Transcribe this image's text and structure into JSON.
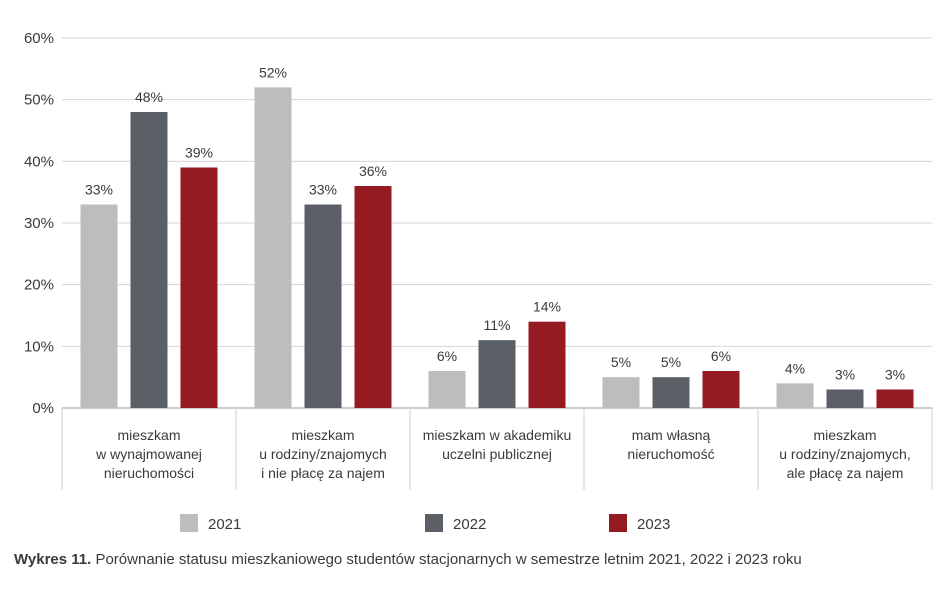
{
  "chart_data": {
    "type": "bar",
    "categories": [
      [
        "mieszkam",
        "w wynajmowanej",
        "nieruchomości"
      ],
      [
        "mieszkam",
        "u rodziny/znajomych",
        "i nie płacę za najem"
      ],
      [
        "mieszkam w akademiku",
        "uczelni publicznej"
      ],
      [
        "mam własną",
        "nieruchomość"
      ],
      [
        "mieszkam",
        "u rodziny/znajomych,",
        "ale płacę za najem"
      ]
    ],
    "series": [
      {
        "name": "2021",
        "color": "#bcbdbf",
        "values": [
          33,
          52,
          6,
          5,
          4
        ]
      },
      {
        "name": "2022",
        "color": "#5b5f66",
        "values": [
          48,
          33,
          11,
          5,
          3
        ]
      },
      {
        "name": "2023",
        "color": "#941b22",
        "values": [
          39,
          36,
          14,
          6,
          3
        ]
      }
    ],
    "ylim": [
      0,
      60
    ],
    "yticks": [
      0,
      10,
      20,
      30,
      40,
      50,
      60
    ],
    "yticks_labels": [
      "0%",
      "10%",
      "20%",
      "30%",
      "40%",
      "50%",
      "60%"
    ],
    "value_suffix": "%",
    "grid": true,
    "legend_position": "bottom"
  },
  "caption": {
    "label": "Wykres 11.",
    "text": " Porównanie statusu mieszkaniowego studentów stacjonarnych w semestrze letnim 2021, 2022 i 2023 roku"
  }
}
